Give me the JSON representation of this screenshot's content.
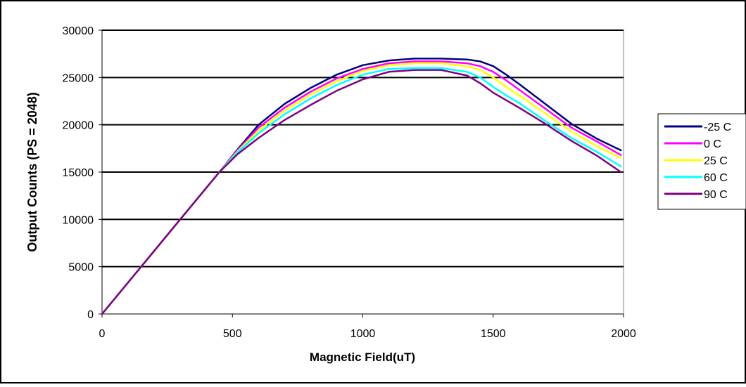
{
  "chart_data": {
    "type": "line",
    "title": "",
    "xlabel": "Magnetic Field(uT)",
    "ylabel": "Output Counts (PS = 2048)",
    "xlim": [
      0,
      2000
    ],
    "ylim": [
      0,
      30000
    ],
    "x_ticks": [
      0,
      500,
      1000,
      1500,
      2000
    ],
    "y_ticks": [
      0,
      5000,
      10000,
      15000,
      20000,
      25000,
      30000
    ],
    "grid": "horizontal",
    "legend_position": "right",
    "series": [
      {
        "name": "-25 C",
        "color": "#000080",
        "x": [
          0,
          150,
          300,
          450,
          520,
          600,
          700,
          800,
          900,
          1000,
          1100,
          1200,
          1300,
          1400,
          1450,
          1500,
          1550,
          1600,
          1700,
          1800,
          1900,
          1990
        ],
        "y": [
          0,
          5000,
          10000,
          15000,
          17400,
          20000,
          22200,
          23900,
          25300,
          26300,
          26800,
          27000,
          27000,
          26900,
          26700,
          26200,
          25300,
          24300,
          22200,
          20100,
          18500,
          17300
        ]
      },
      {
        "name": "0 C",
        "color": "#ff00ff",
        "x": [
          0,
          150,
          300,
          450,
          520,
          600,
          700,
          800,
          900,
          1000,
          1100,
          1200,
          1300,
          1400,
          1450,
          1500,
          1550,
          1600,
          1700,
          1800,
          1900,
          1990
        ],
        "y": [
          0,
          5000,
          10000,
          15000,
          17300,
          19700,
          21800,
          23500,
          24900,
          25900,
          26500,
          26700,
          26700,
          26500,
          26200,
          25600,
          24700,
          23700,
          21700,
          19700,
          18200,
          16800
        ]
      },
      {
        "name": "25 C",
        "color": "#ffff00",
        "x": [
          0,
          150,
          300,
          450,
          520,
          600,
          700,
          800,
          900,
          1000,
          1100,
          1200,
          1300,
          1400,
          1450,
          1500,
          1550,
          1600,
          1700,
          1800,
          1900,
          1990
        ],
        "y": [
          0,
          5000,
          10000,
          15000,
          17200,
          19400,
          21500,
          23200,
          24600,
          25700,
          26300,
          26500,
          26500,
          26200,
          25800,
          25000,
          24000,
          23100,
          21200,
          19300,
          17700,
          16500
        ]
      },
      {
        "name": "60 C",
        "color": "#00ffff",
        "x": [
          0,
          150,
          300,
          450,
          520,
          600,
          700,
          800,
          900,
          1000,
          1100,
          1200,
          1300,
          1400,
          1450,
          1500,
          1550,
          1600,
          1700,
          1800,
          1900,
          1990
        ],
        "y": [
          0,
          5000,
          10000,
          15000,
          17100,
          19100,
          21100,
          22800,
          24200,
          25300,
          25900,
          26000,
          26000,
          25600,
          25000,
          24000,
          23100,
          22300,
          20400,
          18600,
          17100,
          15600
        ]
      },
      {
        "name": "90 C",
        "color": "#800080",
        "x": [
          0,
          150,
          300,
          450,
          520,
          600,
          700,
          800,
          900,
          1000,
          1100,
          1200,
          1300,
          1400,
          1450,
          1500,
          1550,
          1600,
          1700,
          1800,
          1900,
          1990
        ],
        "y": [
          0,
          5000,
          10000,
          15000,
          16900,
          18600,
          20500,
          22100,
          23600,
          24800,
          25600,
          25800,
          25800,
          25200,
          24400,
          23400,
          22600,
          21800,
          20100,
          18300,
          16700,
          15000
        ]
      }
    ]
  }
}
